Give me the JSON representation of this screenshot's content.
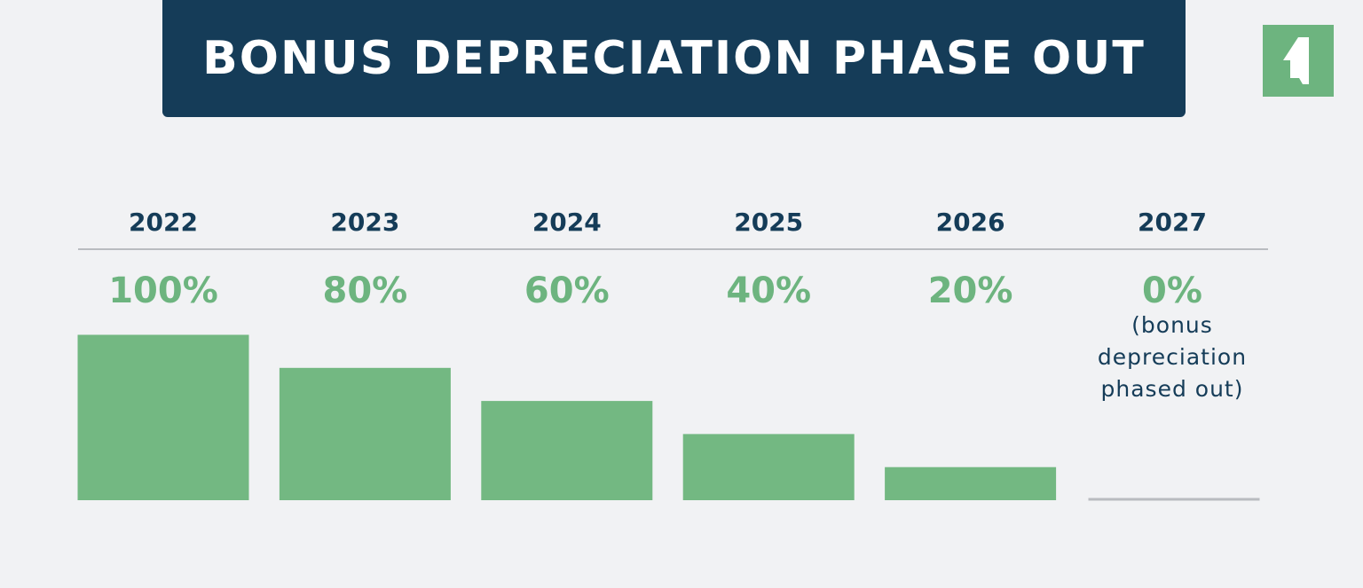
{
  "title": "BONUS DEPRECIATION PHASE OUT",
  "logo": {
    "icon": "company-logo-icon",
    "color": "#6db47f"
  },
  "colors": {
    "banner": "#153c58",
    "bar": "#73b882",
    "accent": "#6db47f",
    "text": "#153c58",
    "rule": "#b9bcc0"
  },
  "chart_data": {
    "type": "bar",
    "categories": [
      "2022",
      "2023",
      "2024",
      "2025",
      "2026",
      "2027"
    ],
    "values": [
      100,
      80,
      60,
      40,
      20,
      0
    ],
    "value_labels": [
      "100%",
      "80%",
      "60%",
      "40%",
      "20%",
      "0%"
    ],
    "annotation": {
      "category": "2027",
      "lines": [
        "(bonus",
        "depreciation",
        "phased out)"
      ]
    },
    "ylim": [
      0,
      100
    ],
    "grid": false,
    "legend": "none"
  }
}
